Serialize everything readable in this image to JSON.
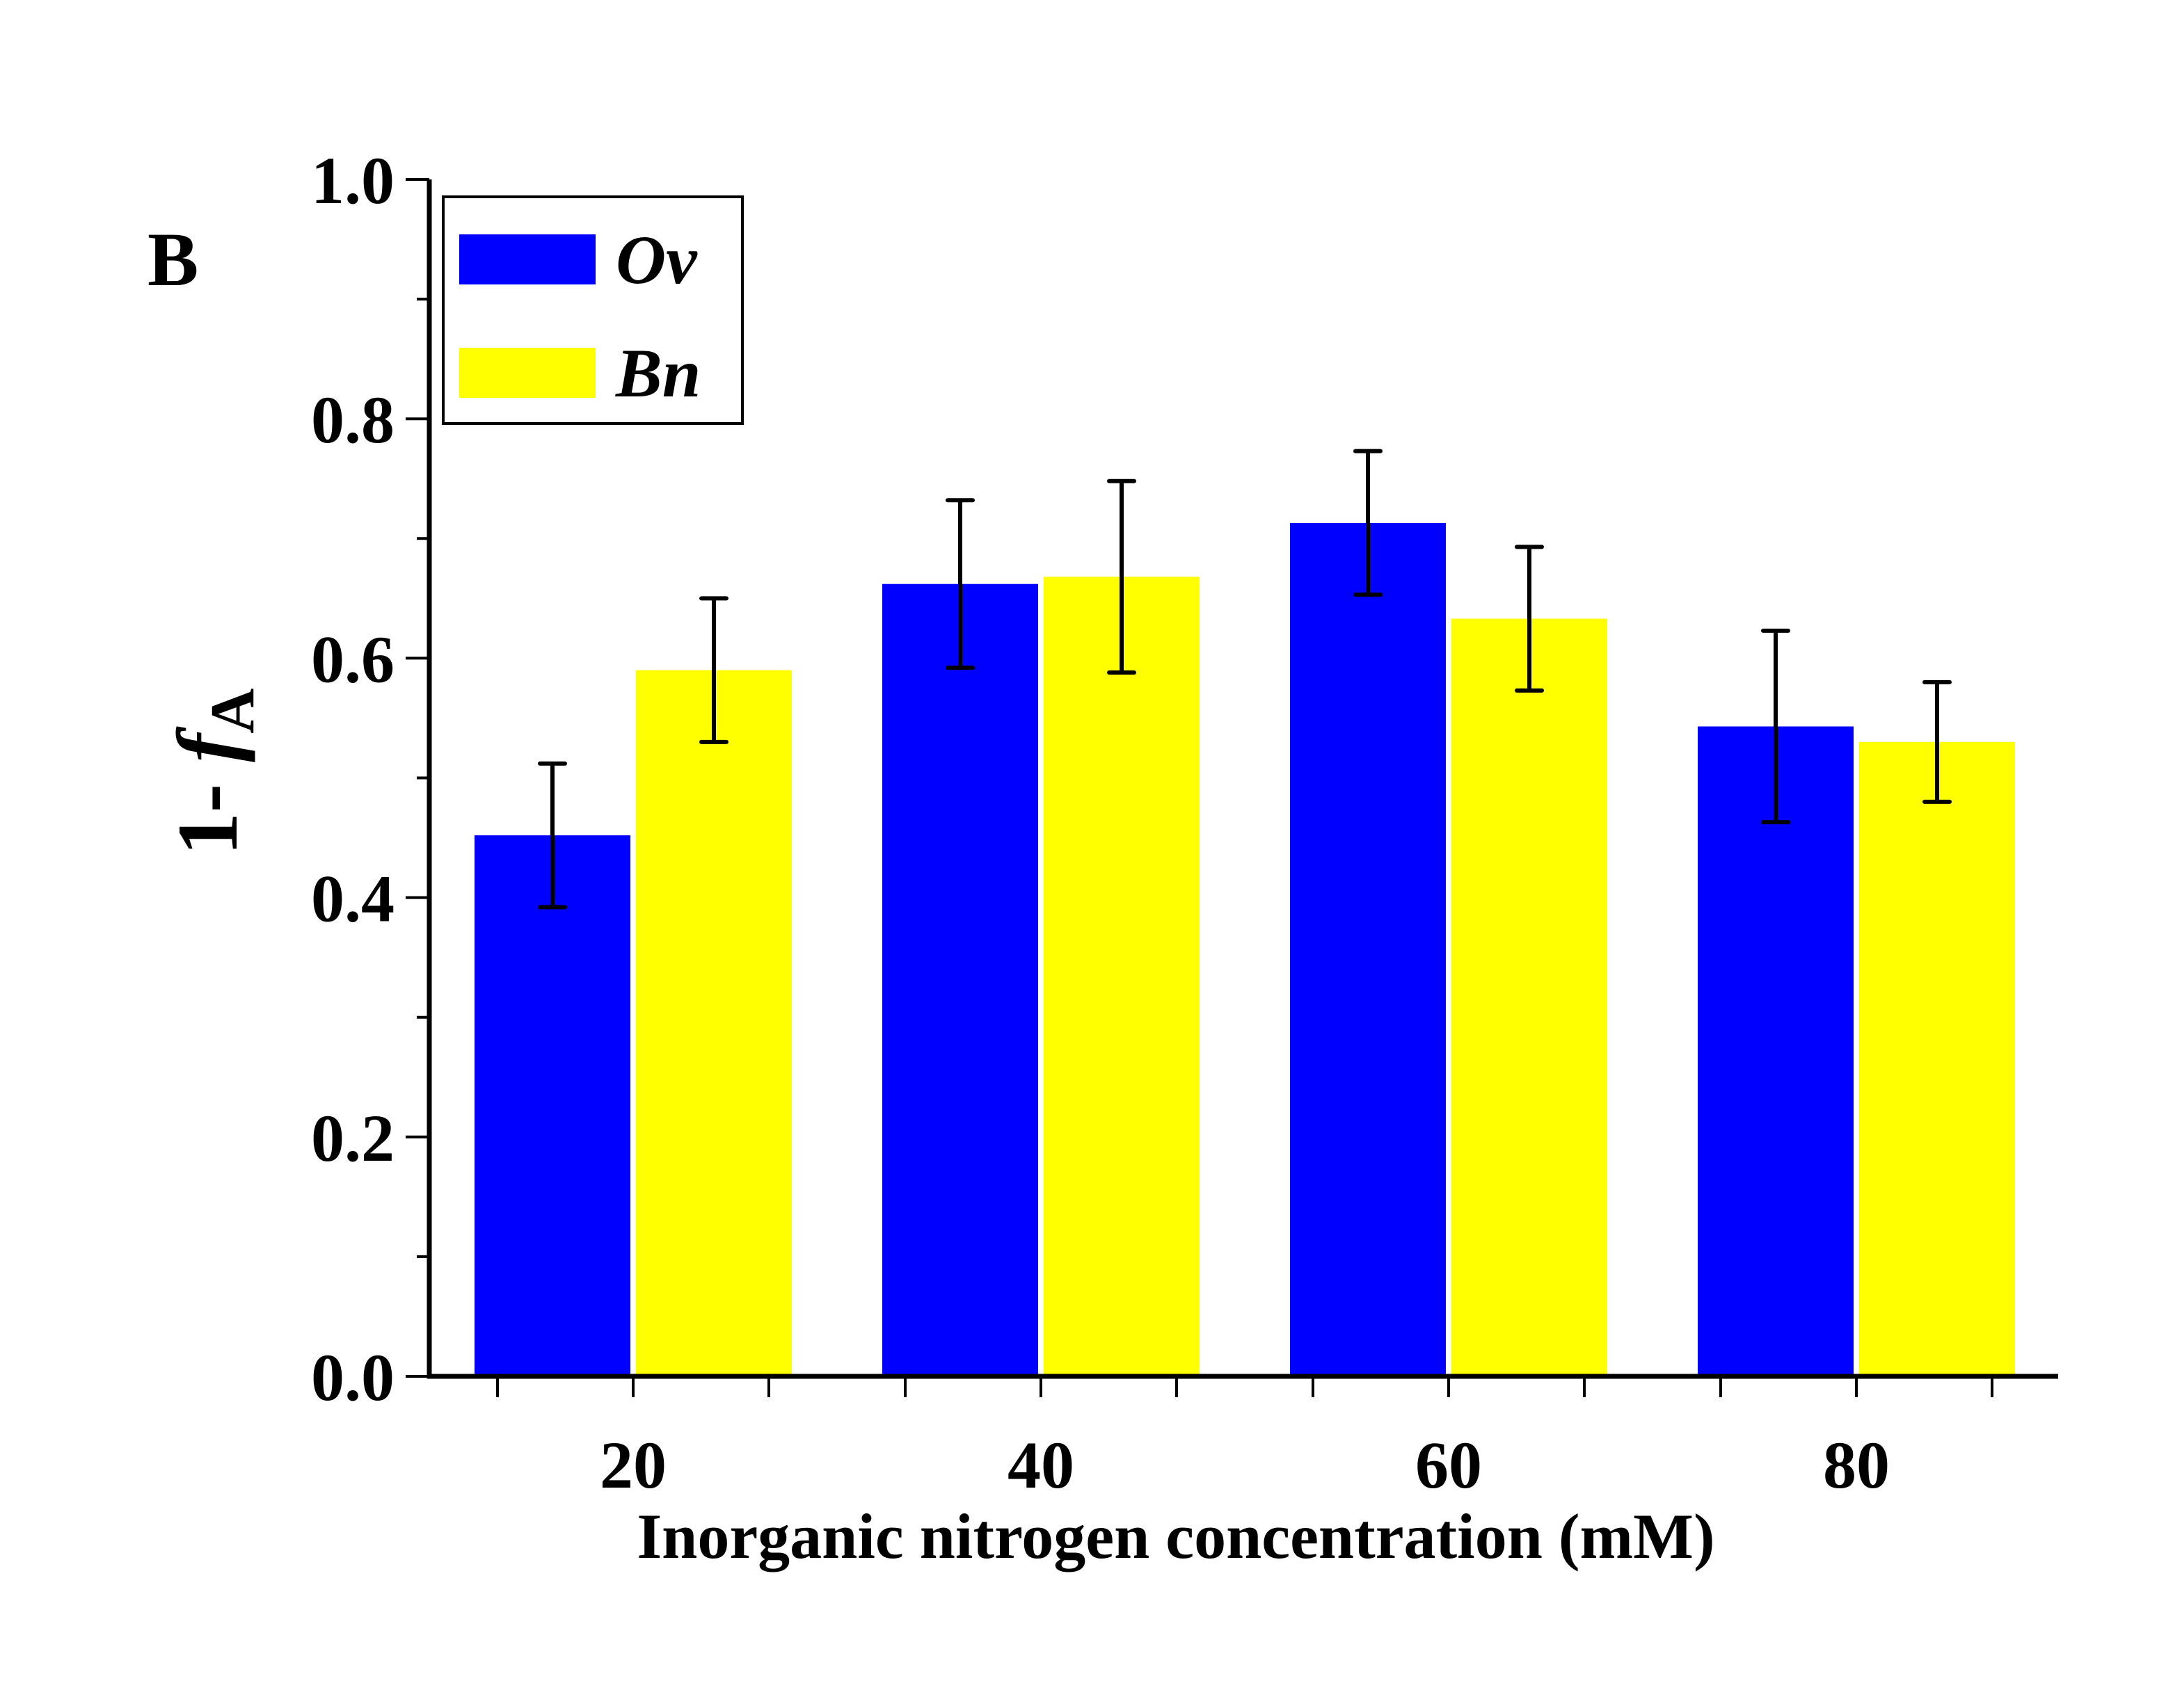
{
  "chart_data": {
    "type": "bar",
    "panel_label": "B",
    "title": "",
    "xlabel": "Inorganic nitrogen concentration (mM)",
    "ylabel": {
      "main": "1- ",
      "italic": "f",
      "subscript": "A"
    },
    "categories": [
      "20",
      "40",
      "60",
      "80"
    ],
    "ylim": [
      0,
      1.0
    ],
    "yticks": [
      "0.0",
      "0.2",
      "0.4",
      "0.6",
      "0.8",
      "1.0"
    ],
    "ytick_values": [
      0.0,
      0.2,
      0.4,
      0.6,
      0.8,
      1.0
    ],
    "y_minor_step": 0.1,
    "grid": false,
    "legend_position": "top-left",
    "series": [
      {
        "name": "Ov",
        "color": "#0000FF",
        "values": [
          0.452,
          0.662,
          0.713,
          0.543
        ],
        "errors": [
          0.06,
          0.07,
          0.06,
          0.08
        ]
      },
      {
        "name": "Bn",
        "color": "#FFFF00",
        "values": [
          0.59,
          0.668,
          0.633,
          0.53
        ],
        "errors": [
          0.06,
          0.08,
          0.06,
          0.05
        ]
      }
    ]
  }
}
